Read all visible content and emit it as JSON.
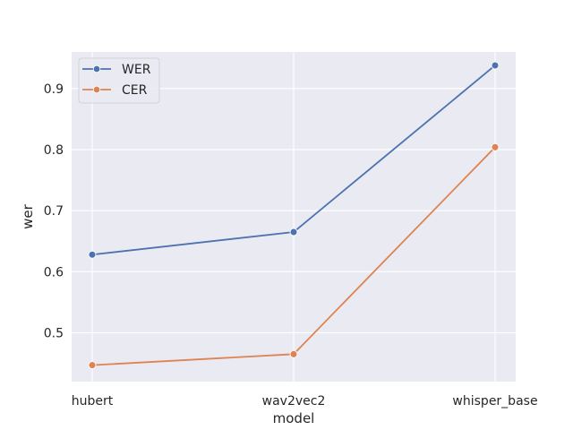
{
  "chart_data": {
    "type": "line",
    "categories": [
      "hubert",
      "wav2vec2",
      "whisper_base"
    ],
    "series": [
      {
        "name": "WER",
        "values": [
          0.628,
          0.665,
          0.938
        ],
        "color": "#4c72b0"
      },
      {
        "name": "CER",
        "values": [
          0.447,
          0.465,
          0.804
        ],
        "color": "#dd8452"
      }
    ],
    "xlabel": "model",
    "ylabel": "wer",
    "ylim": [
      0.42,
      0.96
    ],
    "yticks": [
      "0.5",
      "0.6",
      "0.7",
      "0.8",
      "0.9"
    ],
    "grid": true,
    "legend_position": "top-left",
    "background_color": "#eaeaf2",
    "grid_color": "#ffffff"
  }
}
